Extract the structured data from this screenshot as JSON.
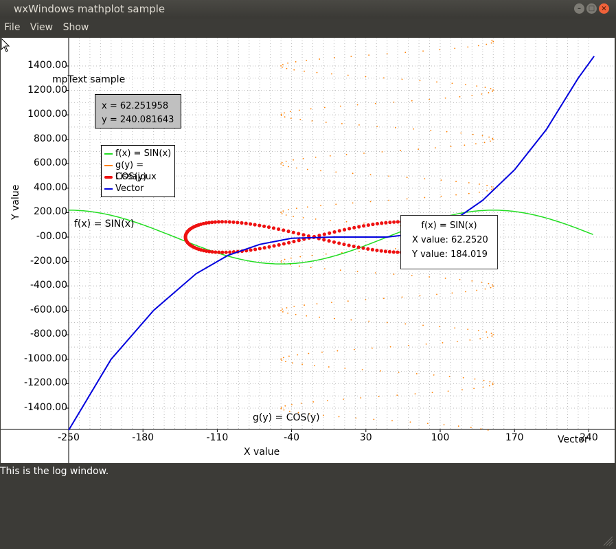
{
  "window": {
    "title": "wxWindows mathplot sample"
  },
  "menu": {
    "items": [
      "File",
      "View",
      "Show"
    ]
  },
  "plot": {
    "y_label": "Y value",
    "x_label": "X value",
    "mptext": "mpText sample",
    "coords": {
      "x": "x = 62.251958",
      "y": "y = 240.081643"
    },
    "legend": [
      {
        "label": "f(x) = SIN(x)",
        "color": "#22dd22"
      },
      {
        "label": "g(y) = COS(y)",
        "color": "#ff8000"
      },
      {
        "label": "Lissajoux",
        "color": "#ee1111"
      },
      {
        "label": "Vector",
        "color": "#0000dd"
      }
    ],
    "series_labels": {
      "sin": "f(x) = SIN(x)",
      "cos": "g(y) = COS(y)",
      "vector": "Vector"
    },
    "tooltip": {
      "title": "f(x) = SIN(x)",
      "x": "X value: 62.2520",
      "y": "Y value: 184.019"
    }
  },
  "chart_data": {
    "type": "line",
    "xlabel": "X value",
    "ylabel": "Y value",
    "x_ticks": [
      "-250",
      "-180",
      "-110",
      "-40",
      "30",
      "100",
      "170",
      "240"
    ],
    "y_ticks": [
      "1400.00",
      "1200.00",
      "1000.00",
      "800.00",
      "600.00",
      "400.00",
      "200.00",
      "-00.00",
      "-200.00",
      "-400.00",
      "-600.00",
      "-800.00",
      "-1000.00",
      "-1200.00",
      "-1400.00"
    ],
    "xlim": [
      -250,
      245
    ],
    "ylim": [
      -1580,
      1620
    ],
    "series": [
      {
        "name": "f(x) = SIN(x)",
        "color": "#22dd22",
        "amplitude": 220,
        "period": 400
      },
      {
        "name": "g(y) = COS(y)",
        "color": "#ff8000",
        "center_x": 50,
        "amplitude": 100,
        "period": 400
      },
      {
        "name": "Lissajoux",
        "color": "#ee1111",
        "center_x": -20,
        "x_amplitude": 120,
        "y_amplitude": 125
      },
      {
        "name": "Vector",
        "color": "#0000dd",
        "points": [
          [
            -250,
            -1580
          ],
          [
            -210,
            -1000
          ],
          [
            -170,
            -600
          ],
          [
            -130,
            -300
          ],
          [
            -100,
            -150
          ],
          [
            -70,
            -60
          ],
          [
            -40,
            -10
          ],
          [
            0,
            0
          ],
          [
            50,
            0
          ],
          [
            80,
            30
          ],
          [
            110,
            120
          ],
          [
            140,
            300
          ],
          [
            170,
            550
          ],
          [
            200,
            880
          ],
          [
            230,
            1300
          ],
          [
            245,
            1480
          ]
        ]
      }
    ]
  }
}
